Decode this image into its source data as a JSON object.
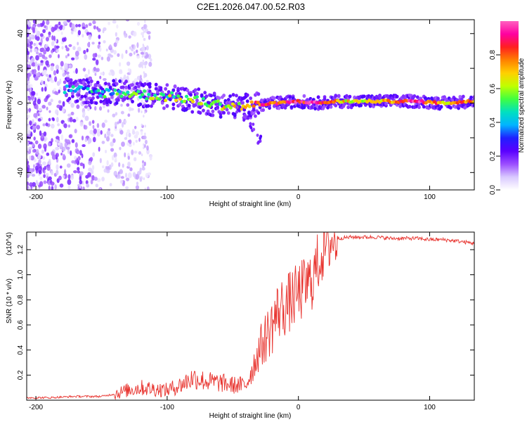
{
  "title": "C2E1.2026.047.00.52.R03",
  "chart_data": [
    {
      "type": "heatmap",
      "xlabel": "Height of straight line (km)",
      "ylabel": "Frequency (Hz)",
      "xlim": [
        -207,
        134
      ],
      "ylim": [
        -50,
        48
      ],
      "xticks": [
        -200,
        -100,
        0,
        100
      ],
      "xtick_labels": [
        "-200",
        "-100",
        "0",
        "100"
      ],
      "yticks": [
        -40,
        -20,
        0,
        20,
        40
      ],
      "ytick_labels": [
        "-40",
        "-20",
        "0",
        "20",
        "40"
      ],
      "colorbar": {
        "label": "Normalized spectral amplitude",
        "range": [
          0,
          1
        ],
        "ticks": [
          0.0,
          0.2,
          0.4,
          0.6,
          0.8
        ],
        "tick_labels": [
          "0.0",
          "0.2",
          "0.4",
          "0.6",
          "0.8"
        ],
        "colors": [
          "#ffffff",
          "#d9c8ff",
          "#9b4dff",
          "#5a00ff",
          "#2020ff",
          "#00b4ff",
          "#00e0c0",
          "#40ff40",
          "#c0ff00",
          "#ffd000",
          "#ff8000",
          "#ff2020",
          "#ff00a0",
          "#ff60c0"
        ]
      },
      "ridge": [
        {
          "x": -178,
          "y": 8,
          "v": 0.35
        },
        {
          "x": -165,
          "y": 7,
          "v": 0.38
        },
        {
          "x": -150,
          "y": 6,
          "v": 0.42
        },
        {
          "x": -135,
          "y": 6,
          "v": 0.46
        },
        {
          "x": -120,
          "y": 5,
          "v": 0.5
        },
        {
          "x": -105,
          "y": 4,
          "v": 0.55
        },
        {
          "x": -90,
          "y": 3,
          "v": 0.58
        },
        {
          "x": -75,
          "y": 1,
          "v": 0.6
        },
        {
          "x": -60,
          "y": -1,
          "v": 0.62
        },
        {
          "x": -45,
          "y": -2,
          "v": 0.66
        },
        {
          "x": -30,
          "y": -1,
          "v": 0.8
        },
        {
          "x": -15,
          "y": 0,
          "v": 0.85
        },
        {
          "x": 0,
          "y": 1,
          "v": 0.9
        },
        {
          "x": 15,
          "y": 0,
          "v": 0.88
        },
        {
          "x": 30,
          "y": 1,
          "v": 0.7
        },
        {
          "x": 50,
          "y": 1,
          "v": 0.6
        },
        {
          "x": 70,
          "y": 1,
          "v": 0.75
        },
        {
          "x": 90,
          "y": 1,
          "v": 0.95
        },
        {
          "x": 110,
          "y": 0,
          "v": 0.7
        },
        {
          "x": 134,
          "y": 1,
          "v": 0.8
        }
      ],
      "tail": [
        {
          "x": -45,
          "y": -3
        },
        {
          "x": -40,
          "y": -8
        },
        {
          "x": -35,
          "y": -14
        },
        {
          "x": -30,
          "y": -21
        }
      ]
    },
    {
      "type": "line",
      "xlabel": "Height of straight line (km)",
      "ylabel": "SNR (10 * v/v)",
      "multiplier": "(x10^4)",
      "xlim": [
        -207,
        134
      ],
      "ylim": [
        0,
        1.34
      ],
      "xticks": [
        -200,
        -100,
        0,
        100
      ],
      "xtick_labels": [
        "-200",
        "-100",
        "0",
        "100"
      ],
      "yticks": [
        0.2,
        0.4,
        0.6,
        0.8,
        1.0,
        1.2
      ],
      "ytick_labels": [
        "0.2",
        "0.4",
        "0.6",
        "0.8",
        "1.0",
        "1.2"
      ],
      "series": [
        {
          "name": "SNR",
          "color": "#e8332e",
          "x": [
            -207,
            -190,
            -170,
            -150,
            -140,
            -130,
            -120,
            -110,
            -100,
            -90,
            -80,
            -70,
            -60,
            -50,
            -40,
            -35,
            -30,
            -25,
            -20,
            -15,
            -10,
            -5,
            0,
            5,
            10,
            15,
            20,
            25,
            30,
            40,
            50,
            60,
            70,
            80,
            90,
            100,
            110,
            120,
            134
          ],
          "y": [
            0.02,
            0.02,
            0.03,
            0.03,
            0.05,
            0.08,
            0.1,
            0.09,
            0.08,
            0.12,
            0.18,
            0.15,
            0.14,
            0.12,
            0.12,
            0.25,
            0.4,
            0.5,
            0.6,
            0.72,
            0.75,
            0.8,
            0.85,
            0.9,
            0.95,
            1.1,
            1.22,
            1.27,
            1.29,
            1.3,
            1.3,
            1.3,
            1.29,
            1.29,
            1.29,
            1.28,
            1.28,
            1.27,
            1.25
          ]
        }
      ]
    }
  ]
}
